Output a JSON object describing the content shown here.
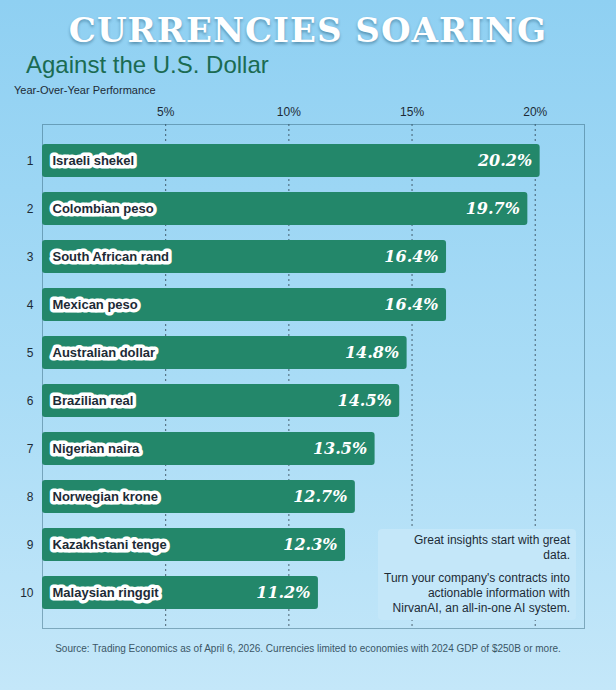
{
  "chart_data": {
    "type": "bar",
    "orientation": "horizontal",
    "title": "CURRENCIES SOARING",
    "subtitle": "Against the U.S. Dollar",
    "y_label": "Year-Over-Year Performance",
    "categories": [
      "Israeli shekel",
      "Colombian peso",
      "South African rand",
      "Mexican peso",
      "Australian dollar",
      "Brazilian real",
      "Nigerian naira",
      "Norwegian krone",
      "Kazakhstani tenge",
      "Malaysian ringgit"
    ],
    "ranks": [
      1,
      2,
      3,
      4,
      5,
      6,
      7,
      8,
      9,
      10
    ],
    "values": [
      20.2,
      19.7,
      16.4,
      16.4,
      14.8,
      14.5,
      13.5,
      12.7,
      12.3,
      11.2
    ],
    "value_labels": [
      "20.2%",
      "19.7%",
      "16.4%",
      "16.4%",
      "14.8%",
      "14.5%",
      "13.5%",
      "12.7%",
      "12.3%",
      "11.2%"
    ],
    "color": "#23876a",
    "xlim": [
      0,
      22
    ],
    "xticks": [
      {
        "value": 5,
        "label": "5%"
      },
      {
        "value": 10,
        "label": "10%"
      },
      {
        "value": 15,
        "label": "15%"
      },
      {
        "value": 20,
        "label": "20%"
      }
    ],
    "grid": true,
    "data_labels": true,
    "annotations": [
      "Great insights start with great data.",
      "Turn your company's contracts into actionable information with NirvanAI, an all-in-one AI system."
    ],
    "source": "Source: Trading Economics as of April 6, 2026. Currencies limited to economies with 2024 GDP of $250B or more."
  }
}
